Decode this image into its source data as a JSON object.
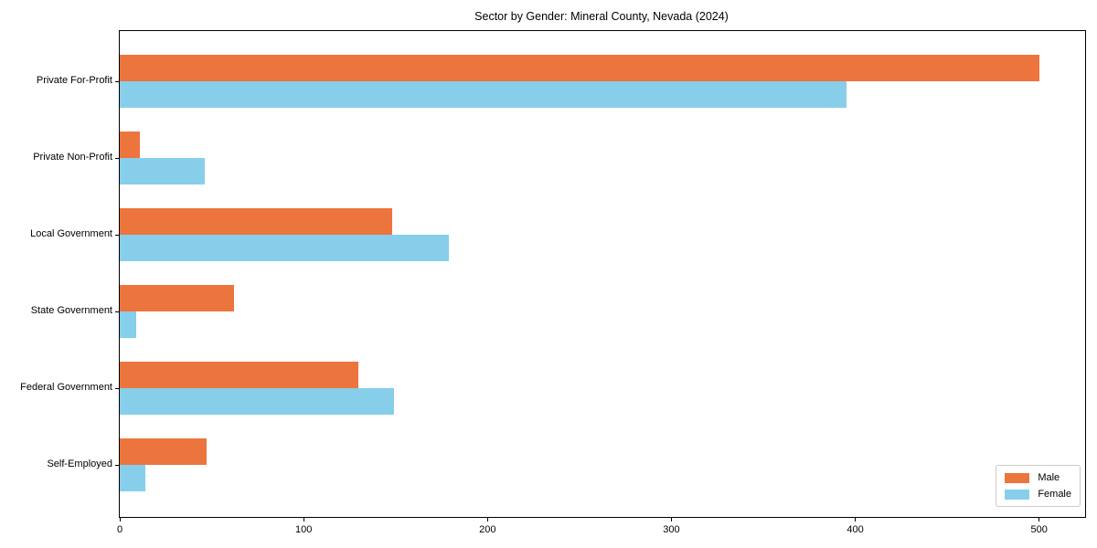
{
  "chart_data": {
    "type": "bar",
    "orientation": "horizontal",
    "title": "Sector by Gender: Mineral County, Nevada (2024)",
    "categories": [
      "Private For-Profit",
      "Private Non-Profit",
      "Local Government",
      "State Government",
      "Federal Government",
      "Self-Employed"
    ],
    "series": [
      {
        "name": "Male",
        "color": "#ec753d",
        "values": [
          500,
          11,
          148,
          62,
          130,
          47
        ]
      },
      {
        "name": "Female",
        "color": "#87ceeb",
        "values": [
          395,
          46,
          179,
          9,
          149,
          14
        ]
      }
    ],
    "x_ticks": [
      0,
      100,
      200,
      300,
      400,
      500
    ],
    "xlim": [
      0,
      525
    ],
    "xlabel": "",
    "ylabel": "",
    "grid": false,
    "legend_position": "lower right",
    "colors": {
      "male": "#ec753d",
      "female": "#87ceeb",
      "spine": "#000000",
      "background": "#ffffff"
    }
  }
}
